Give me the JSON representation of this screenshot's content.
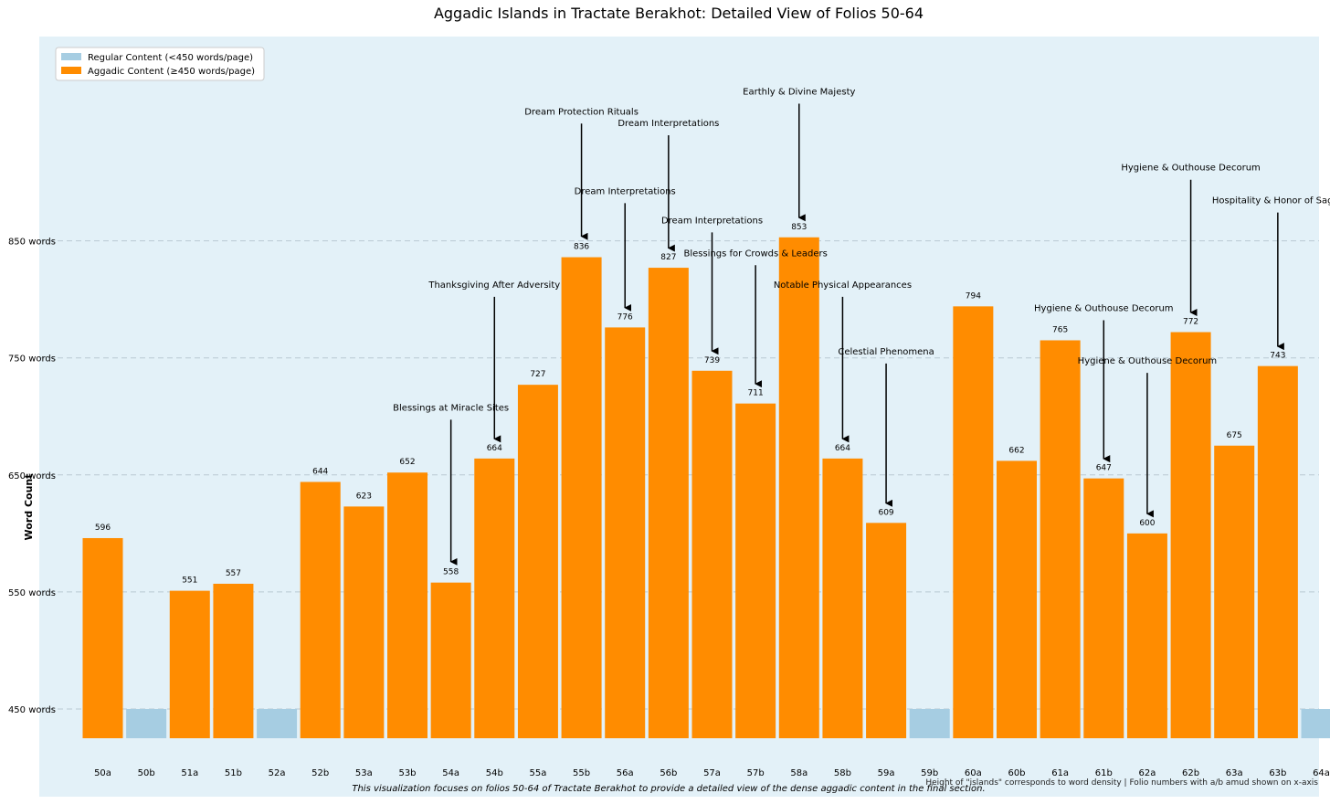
{
  "chart_data": {
    "type": "bar",
    "title": "Aggadic Islands in Tractate Berakhot: Detailed View of Folios 50-64",
    "ylabel": "Word Count",
    "xlabel": "",
    "ylim": [
      425,
      1030
    ],
    "y_ticks": [
      450,
      550,
      650,
      750,
      850
    ],
    "y_tick_labels": [
      "450 words",
      "550 words",
      "650 words",
      "750 words",
      "850 words"
    ],
    "grid": "horizontal dashed",
    "legend_position": "top-left",
    "legend": [
      {
        "label": "Regular Content (<450 words/page)",
        "color": "#a6cde2"
      },
      {
        "label": "Aggadic Content (≥450 words/page)",
        "color": "#ff8c00"
      }
    ],
    "colors": {
      "regular": "#a6cde2",
      "aggadic": "#ff8c00",
      "background": "#e3f1f8"
    },
    "bars": [
      {
        "folio": "50a",
        "value": 596,
        "label": "596",
        "type": "aggadic"
      },
      {
        "folio": "50b",
        "value": 450,
        "label": "",
        "type": "regular"
      },
      {
        "folio": "51a",
        "value": 551,
        "label": "551",
        "type": "aggadic"
      },
      {
        "folio": "51b",
        "value": 557,
        "label": "557",
        "type": "aggadic"
      },
      {
        "folio": "52a",
        "value": 450,
        "label": "",
        "type": "regular"
      },
      {
        "folio": "52b",
        "value": 644,
        "label": "644",
        "type": "aggadic"
      },
      {
        "folio": "53a",
        "value": 623,
        "label": "623",
        "type": "aggadic"
      },
      {
        "folio": "53b",
        "value": 652,
        "label": "652",
        "type": "aggadic"
      },
      {
        "folio": "54a",
        "value": 558,
        "label": "558",
        "type": "aggadic"
      },
      {
        "folio": "54b",
        "value": 664,
        "label": "664",
        "type": "aggadic"
      },
      {
        "folio": "55a",
        "value": 727,
        "label": "727",
        "type": "aggadic"
      },
      {
        "folio": "55b",
        "value": 836,
        "label": "836",
        "type": "aggadic"
      },
      {
        "folio": "56a",
        "value": 776,
        "label": "776",
        "type": "aggadic"
      },
      {
        "folio": "56b",
        "value": 827,
        "label": "827",
        "type": "aggadic"
      },
      {
        "folio": "57a",
        "value": 739,
        "label": "739",
        "type": "aggadic"
      },
      {
        "folio": "57b",
        "value": 711,
        "label": "711",
        "type": "aggadic"
      },
      {
        "folio": "58a",
        "value": 853,
        "label": "853",
        "type": "aggadic"
      },
      {
        "folio": "58b",
        "value": 664,
        "label": "664",
        "type": "aggadic"
      },
      {
        "folio": "59a",
        "value": 609,
        "label": "609",
        "type": "aggadic"
      },
      {
        "folio": "59b",
        "value": 450,
        "label": "",
        "type": "regular"
      },
      {
        "folio": "60a",
        "value": 794,
        "label": "794",
        "type": "aggadic"
      },
      {
        "folio": "60b",
        "value": 662,
        "label": "662",
        "type": "aggadic"
      },
      {
        "folio": "61a",
        "value": 765,
        "label": "765",
        "type": "aggadic"
      },
      {
        "folio": "61b",
        "value": 647,
        "label": "647",
        "type": "aggadic"
      },
      {
        "folio": "62a",
        "value": 600,
        "label": "600",
        "type": "aggadic"
      },
      {
        "folio": "62b",
        "value": 772,
        "label": "772",
        "type": "aggadic"
      },
      {
        "folio": "63a",
        "value": 675,
        "label": "675",
        "type": "aggadic"
      },
      {
        "folio": "63b",
        "value": 743,
        "label": "743",
        "type": "aggadic"
      },
      {
        "folio": "64a",
        "value": 450,
        "label": "",
        "type": "regular"
      }
    ],
    "annotations": [
      {
        "folio": "54a",
        "text": "Blessings at Miracle Sites",
        "text_value": 705,
        "point_value": 575
      },
      {
        "folio": "54b",
        "text": "Thanksgiving After Adversity",
        "text_value": 810,
        "point_value": 680
      },
      {
        "folio": "55b",
        "text": "Dream Protection Rituals",
        "text_value": 958,
        "point_value": 853
      },
      {
        "folio": "56a",
        "text": "Dream Interpretations",
        "text_value": 890,
        "point_value": 792
      },
      {
        "folio": "56b",
        "text": "Dream Interpretations",
        "text_value": 948,
        "point_value": 843
      },
      {
        "folio": "57a",
        "text": "Dream Interpretations",
        "text_value": 865,
        "point_value": 755
      },
      {
        "folio": "57b",
        "text": "Blessings for Crowds & Leaders",
        "text_value": 837,
        "point_value": 727
      },
      {
        "folio": "58a",
        "text": "Earthly & Divine Majesty",
        "text_value": 975,
        "point_value": 869
      },
      {
        "folio": "58b",
        "text": "Notable Physical Appearances",
        "text_value": 810,
        "point_value": 680
      },
      {
        "folio": "59a",
        "text": "Celestial Phenomena",
        "text_value": 753,
        "point_value": 625
      },
      {
        "folio": "61b",
        "text": "Hygiene & Outhouse Decorum",
        "text_value": 790,
        "point_value": 663
      },
      {
        "folio": "62a",
        "text": "Hygiene & Outhouse Decorum",
        "text_value": 745,
        "point_value": 616
      },
      {
        "folio": "62b",
        "text": "Hygiene & Outhouse Decorum",
        "text_value": 910,
        "point_value": 788
      },
      {
        "folio": "63b",
        "text": "Hospitality & Honor of Sages",
        "text_value": 882,
        "point_value": 759
      }
    ],
    "footnote": "This visualization focuses on folios 50-64 of Tractate Berakhot to provide a detailed view of the dense aggadic content in the final section.",
    "footnote_right": "Height of \"islands\" corresponds to word density | Folio numbers with a/b amud shown on x-axis"
  }
}
